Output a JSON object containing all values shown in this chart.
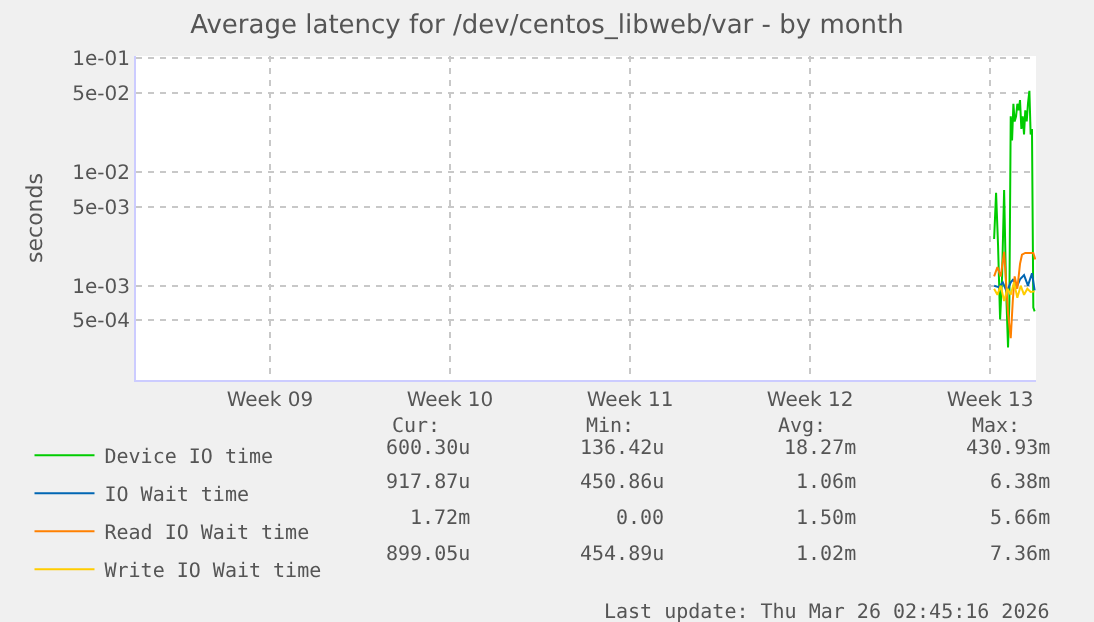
{
  "chart_data": {
    "type": "line",
    "title": "Average latency for /dev/centos_libweb/var - by month",
    "ylabel": "seconds",
    "log": "y",
    "grid": true,
    "legend": "bottom left",
    "marker": "none",
    "line_style": "solid",
    "xlim": [
      "2026-02-19T03:00",
      "2026-03-26T02:45"
    ],
    "xticks": [
      {
        "value": "2026-02-24T08:00",
        "label": "Week 09"
      },
      {
        "value": "2026-03-03T08:00",
        "label": "Week 10"
      },
      {
        "value": "2026-03-10T08:00",
        "label": "Week 11"
      },
      {
        "value": "2026-03-17T08:00",
        "label": "Week 12"
      },
      {
        "value": "2026-03-24T08:00",
        "label": "Week 13"
      }
    ],
    "ylim": [
      0.00015,
      0.105
    ],
    "yticks": [
      {
        "value": 0.1,
        "label": "1e-01"
      },
      {
        "value": 0.05,
        "label": "5e-02"
      },
      {
        "value": 0.01,
        "label": "1e-02"
      },
      {
        "value": 0.005,
        "label": "5e-03"
      },
      {
        "value": 0.001,
        "label": "1e-03"
      },
      {
        "value": 0.0005,
        "label": "5e-04"
      }
    ],
    "series": [
      {
        "name": "Device IO time",
        "color": "#00cc00",
        "x": [
          "2026-03-24T11:40",
          "2026-03-24T13:30",
          "2026-03-24T15:20",
          "2026-03-24T17:15",
          "2026-03-24T19:05",
          "2026-03-24T21:00",
          "2026-03-24T22:50",
          "2026-03-25T00:40",
          "2026-03-25T01:55",
          "2026-03-25T03:10",
          "2026-03-25T04:25",
          "2026-03-25T05:40",
          "2026-03-25T06:50",
          "2026-03-25T08:10",
          "2026-03-25T09:20",
          "2026-03-25T10:35",
          "2026-03-25T11:50",
          "2026-03-25T13:05",
          "2026-03-25T14:20",
          "2026-03-25T15:35",
          "2026-03-25T16:45",
          "2026-03-25T18:05",
          "2026-03-25T19:15",
          "2026-03-25T20:35",
          "2026-03-25T21:45",
          "2026-03-25T23:00",
          "2026-03-26T00:15",
          "2026-03-26T01:30"
        ],
        "values": [
          0.0026,
          0.0066,
          0.0023,
          0.00051,
          0.0012,
          0.007,
          0.00095,
          0.00029,
          0.00074,
          0.031,
          0.019,
          0.04,
          0.028,
          0.031,
          0.04,
          0.035,
          0.043,
          0.024,
          0.031,
          0.0215,
          0.035,
          0.028,
          0.04,
          0.052,
          0.0215,
          0.024,
          0.00065,
          0.0006
        ]
      },
      {
        "name": "IO Wait time",
        "color": "#0066b3",
        "x": [
          "2026-03-24T11:40",
          "2026-03-24T16:00",
          "2026-03-24T19:45",
          "2026-03-24T23:30",
          "2026-03-25T03:10",
          "2026-03-25T05:40",
          "2026-03-25T08:10",
          "2026-03-25T11:50",
          "2026-03-25T15:35",
          "2026-03-25T19:15",
          "2026-03-25T23:00",
          "2026-03-26T01:30"
        ],
        "values": [
          0.00101,
          0.00098,
          0.00108,
          0.00089,
          0.00108,
          0.00115,
          0.00095,
          0.00115,
          0.00125,
          0.00101,
          0.0013,
          0.00092
        ]
      },
      {
        "name": "Read IO Wait time",
        "color": "#ff8000",
        "x": [
          "2026-03-24T11:40",
          "2026-03-24T14:45",
          "2026-03-24T17:50",
          "2026-03-24T21:00",
          "2026-03-24T22:50",
          "2026-03-25T00:40",
          "2026-03-25T03:10",
          "2026-03-25T05:05",
          "2026-03-25T06:50",
          "2026-03-25T09:20",
          "2026-03-25T11:50",
          "2026-03-25T13:40",
          "2026-03-25T16:45",
          "2026-03-25T20:35",
          "2026-03-26T00:15",
          "2026-03-26T02:05"
        ],
        "values": [
          0.00122,
          0.00147,
          0.00122,
          0.002,
          0.00108,
          0.00058,
          0.00035,
          0.00074,
          0.00122,
          0.00095,
          0.00157,
          0.00189,
          0.00196,
          0.00196,
          0.00196,
          0.00172
        ]
      },
      {
        "name": "Write IO Wait time",
        "color": "#ffcc00",
        "x": [
          "2026-03-24T11:40",
          "2026-03-24T14:45",
          "2026-03-24T17:50",
          "2026-03-24T21:00",
          "2026-03-25T00:05",
          "2026-03-25T03:10",
          "2026-03-25T06:15",
          "2026-03-25T09:20",
          "2026-03-25T12:30",
          "2026-03-25T15:35",
          "2026-03-25T18:40",
          "2026-03-25T21:45",
          "2026-03-26T01:30"
        ],
        "values": [
          0.00095,
          0.00084,
          0.00101,
          0.00074,
          0.00095,
          0.00084,
          0.00108,
          0.00079,
          0.00101,
          0.00084,
          0.00095,
          0.00089,
          0.0009
        ]
      }
    ],
    "annotations": [
      "Cur:",
      "Min:",
      "Avg:",
      "Max:",
      "600.30u",
      "136.42u",
      "18.27m",
      "430.93m",
      "917.87u",
      "450.86u",
      "1.06m",
      "6.38m",
      "1.72m",
      "0.00",
      "1.50m",
      "5.66m",
      "899.05u",
      "454.89u",
      "1.02m",
      "7.36m",
      "Last update: Thu Mar 26 02:45:16 2026"
    ]
  }
}
